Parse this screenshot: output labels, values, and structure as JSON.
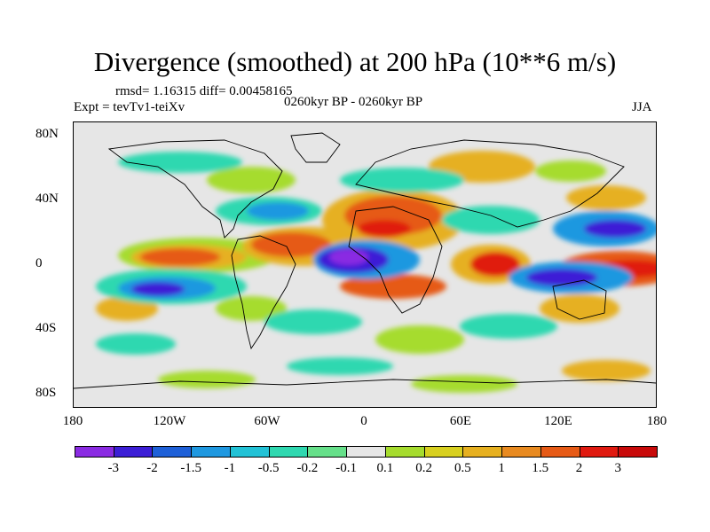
{
  "title": "Divergence (smoothed) at 200 hPa (10**6 m/s)",
  "stats": "rmsd= 1.16315 diff= 0.00458165",
  "experiment": "Expt = tevTv1-teiXv",
  "period": "0260kyr BP - 0260kyr BP",
  "season": "JJA",
  "lat_labels": [
    "80N",
    "40N",
    "0",
    "40S",
    "80S"
  ],
  "lon_labels": [
    "180",
    "120W",
    "60W",
    "0",
    "60E",
    "120E",
    "180"
  ],
  "colorbar": {
    "labels": [
      "-3",
      "-2",
      "-1.5",
      "-1",
      "-0.5",
      "-0.2",
      "-0.1",
      "0.1",
      "0.2",
      "0.5",
      "1",
      "1.5",
      "2",
      "3"
    ],
    "colors": [
      "#8a2be2",
      "#3c1fd6",
      "#1e60d8",
      "#1f98e0",
      "#22c2d6",
      "#2fd8b0",
      "#66e08a",
      "#e6e6e6",
      "#a6dc2e",
      "#d8d020",
      "#e6b020",
      "#e88a20",
      "#e65a16",
      "#e01a10",
      "#c80a0a"
    ]
  },
  "field_colors": {
    "neutral": "#e6e6e6",
    "pos_weak": "#a6dc2e",
    "pos_mid": "#e6b020",
    "pos_strong": "#e65a16",
    "pos_max": "#e01a10",
    "neg_weak": "#2fd8b0",
    "neg_mid": "#1f98e0",
    "neg_strong": "#3c1fd6",
    "neg_max": "#8a2be2"
  }
}
